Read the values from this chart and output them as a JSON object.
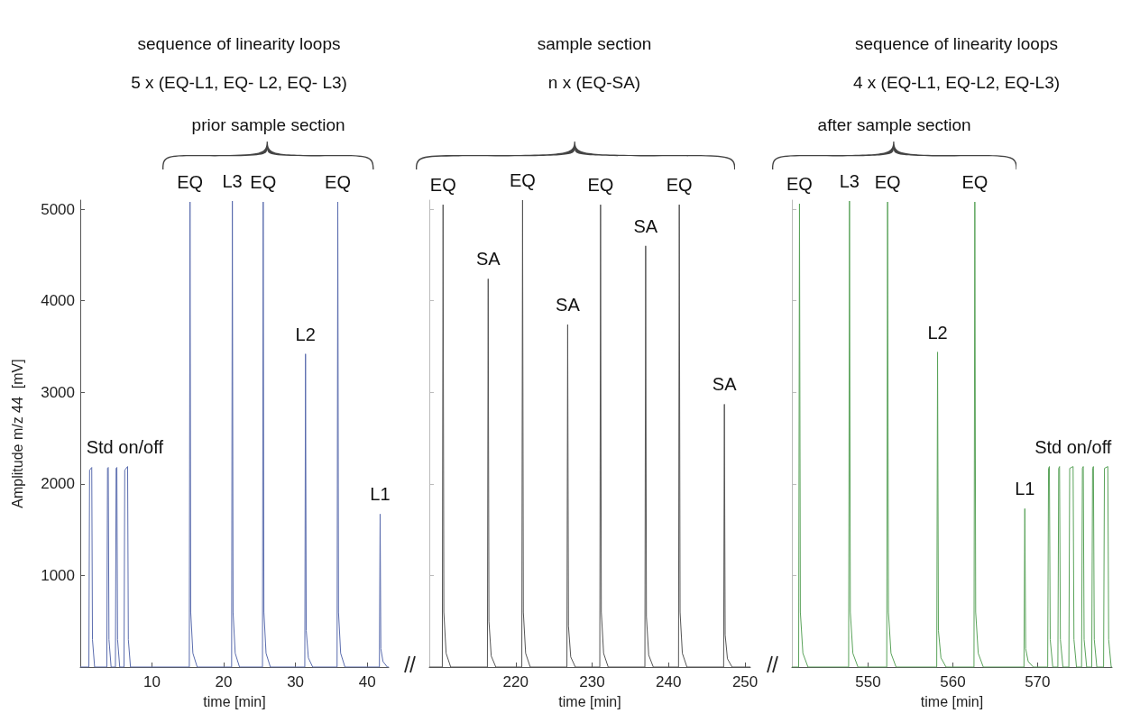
{
  "chart_data": [
    {
      "type": "line",
      "title": "sequence of linearity loops",
      "subtitle": "5 x (EQ-L1, EQ- L2, EQ- L3)",
      "xlabel": "time [min]",
      "ylabel": "Amplitude m/z 44  [mV]",
      "marker": "none",
      "xlim": [
        0,
        43
      ],
      "xticks": [
        10,
        20,
        30,
        40
      ],
      "ylim": [
        0,
        5100
      ],
      "yticks": [
        1000,
        2000,
        3000,
        4000,
        5000
      ],
      "series": [
        {
          "color": "#5a6cae",
          "x": [
            0,
            1.2,
            1.3,
            1.6,
            1.7,
            2.0,
            3.7,
            3.8,
            3.9,
            4.0,
            4.3,
            4.9,
            5.0,
            5.1,
            5.2,
            5.5,
            6.1,
            6.2,
            6.6,
            6.7,
            7.0,
            15.2,
            15.3,
            15.4,
            15.7,
            16.3,
            21.1,
            21.2,
            21.3,
            21.6,
            22.2,
            25.4,
            25.5,
            25.6,
            25.9,
            26.5,
            31.3,
            31.4,
            31.5,
            31.8,
            32.4,
            35.8,
            35.9,
            36.0,
            36.3,
            36.9,
            41.7,
            41.8,
            41.9,
            42.2,
            42.8,
            43
          ],
          "values": [
            0,
            0,
            2150,
            2180,
            300,
            0,
            0,
            2170,
            2180,
            300,
            0,
            0,
            2170,
            2180,
            300,
            0,
            0,
            2150,
            2190,
            300,
            0,
            0,
            5080,
            600,
            150,
            0,
            0,
            5090,
            600,
            150,
            0,
            0,
            5080,
            600,
            150,
            0,
            0,
            3420,
            400,
            100,
            0,
            0,
            5080,
            600,
            150,
            0,
            0,
            1670,
            200,
            60,
            0,
            0
          ]
        }
      ],
      "annotations": [
        "prior sample section",
        {
          "text": "Std on/off",
          "x": 6.2,
          "y": 2190
        },
        {
          "text": "EQ",
          "x": 15.3,
          "y": 5080
        },
        {
          "text": "L3",
          "x": 21.2,
          "y": 5090
        },
        {
          "text": "EQ",
          "x": 25.5,
          "y": 5080
        },
        {
          "text": "L2",
          "x": 31.4,
          "y": 3420
        },
        {
          "text": "EQ",
          "x": 35.9,
          "y": 5080
        },
        {
          "text": "L1",
          "x": 41.8,
          "y": 1670
        }
      ]
    },
    {
      "type": "line",
      "title": "sample section",
      "subtitle": "n x (EQ-SA)",
      "xlabel": "time [min]",
      "marker": "none",
      "tick_labels": "x",
      "xlim": [
        208.7,
        250.7
      ],
      "xticks": [
        220,
        230,
        240,
        250
      ],
      "ylim": [
        0,
        5100
      ],
      "yticks": [
        1000,
        2000,
        3000,
        4000,
        5000
      ],
      "series": [
        {
          "color": "#555555",
          "x": [
            208.7,
            210.4,
            210.5,
            210.6,
            210.9,
            211.5,
            216.3,
            216.4,
            216.5,
            216.8,
            217.4,
            220.8,
            220.9,
            221.0,
            221.3,
            221.9,
            226.7,
            226.8,
            226.9,
            227.2,
            227.8,
            231.0,
            231.1,
            231.2,
            231.5,
            232.1,
            236.9,
            237.0,
            237.1,
            237.4,
            238.0,
            241.3,
            241.4,
            241.5,
            241.8,
            242.4,
            247.2,
            247.3,
            247.4,
            247.7,
            248.3,
            250.7
          ],
          "values": [
            0,
            0,
            5050,
            600,
            150,
            0,
            0,
            4240,
            500,
            120,
            0,
            0,
            5100,
            600,
            150,
            0,
            0,
            3740,
            450,
            110,
            0,
            0,
            5050,
            600,
            150,
            0,
            0,
            4600,
            550,
            130,
            0,
            0,
            5050,
            600,
            150,
            0,
            0,
            2870,
            350,
            90,
            0,
            0
          ]
        }
      ],
      "annotations": [
        {
          "text": "EQ",
          "x": 210.5,
          "y": 5050
        },
        {
          "text": "SA",
          "x": 216.4,
          "y": 4240
        },
        {
          "text": "EQ",
          "x": 220.9,
          "y": 5100
        },
        {
          "text": "SA",
          "x": 226.8,
          "y": 3740
        },
        {
          "text": "EQ",
          "x": 231.1,
          "y": 5050
        },
        {
          "text": "SA",
          "x": 237.0,
          "y": 4600
        },
        {
          "text": "EQ",
          "x": 241.4,
          "y": 5050
        },
        {
          "text": "SA",
          "x": 247.3,
          "y": 2870
        }
      ]
    },
    {
      "type": "line",
      "title": "sequence of linearity loops",
      "subtitle": "4 x (EQ-L1, EQ-L2, EQ-L3)",
      "xlabel": "time [min]",
      "marker": "none",
      "tick_labels": "x",
      "xlim": [
        541,
        578.8
      ],
      "xticks": [
        550,
        560,
        570
      ],
      "ylim": [
        0,
        5100
      ],
      "yticks": [
        1000,
        2000,
        3000,
        4000,
        5000
      ],
      "series": [
        {
          "color": "#5aa35a",
          "x": [
            541,
            541.8,
            541.9,
            542.0,
            542.3,
            542.9,
            547.7,
            547.8,
            547.9,
            548.2,
            548.8,
            552.2,
            552.3,
            552.4,
            552.7,
            553.3,
            558.1,
            558.2,
            558.3,
            558.6,
            559.2,
            562.5,
            562.6,
            562.7,
            563.0,
            563.6,
            568.4,
            568.5,
            568.6,
            568.9,
            569.5,
            571.2,
            571.3,
            571.4,
            571.5,
            571.8,
            572.4,
            572.5,
            572.6,
            572.7,
            573.0,
            573.7,
            573.8,
            574.2,
            574.3,
            574.6,
            575.2,
            575.3,
            575.4,
            575.5,
            575.8,
            576.4,
            576.5,
            576.6,
            576.7,
            577.0,
            577.8,
            577.9,
            578.3,
            578.4,
            578.7,
            578.8
          ],
          "values": [
            0,
            0,
            5060,
            600,
            150,
            0,
            0,
            5090,
            600,
            150,
            0,
            0,
            5080,
            600,
            150,
            0,
            0,
            3440,
            400,
            100,
            0,
            0,
            5080,
            600,
            150,
            0,
            0,
            1730,
            200,
            60,
            0,
            0,
            2170,
            2190,
            300,
            0,
            0,
            2170,
            2190,
            300,
            0,
            0,
            2170,
            2190,
            300,
            0,
            0,
            2170,
            2190,
            300,
            0,
            0,
            2170,
            2190,
            300,
            0,
            0,
            2170,
            2190,
            300,
            0,
            0
          ]
        }
      ],
      "annotations": [
        "after sample section",
        {
          "text": "EQ",
          "x": 541.9,
          "y": 5060
        },
        {
          "text": "L3",
          "x": 547.8,
          "y": 5090
        },
        {
          "text": "EQ",
          "x": 552.3,
          "y": 5080
        },
        {
          "text": "L2",
          "x": 558.2,
          "y": 3440
        },
        {
          "text": "EQ",
          "x": 562.6,
          "y": 5080
        },
        {
          "text": "L1",
          "x": 568.5,
          "y": 1730
        },
        {
          "text": "Std on/off",
          "x": 574.2,
          "y": 2190
        }
      ]
    }
  ]
}
